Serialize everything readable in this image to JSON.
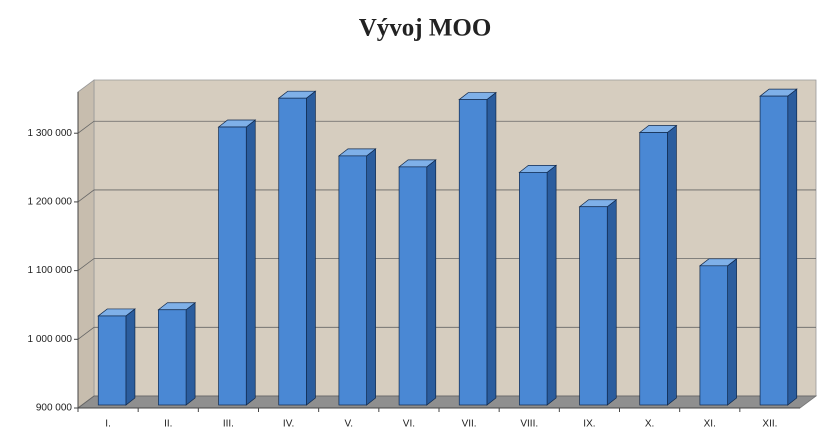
{
  "chart_data": {
    "type": "bar3d",
    "title": "Vývoj MOO",
    "categories": [
      "I.",
      "II.",
      "III.",
      "IV.",
      "V.",
      "VI.",
      "VII.",
      "VIII.",
      "IX.",
      "X.",
      "XI.",
      "XII."
    ],
    "values": [
      1034000,
      1043000,
      1309000,
      1351000,
      1267000,
      1251000,
      1349000,
      1243000,
      1193000,
      1301000,
      1107000,
      1354000
    ],
    "color": "#4a88d4",
    "ylim": [
      900000,
      1360000
    ],
    "yticks": [
      {
        "value": 900000,
        "label": "900 000"
      },
      {
        "value": 1000000,
        "label": "1 000 000"
      },
      {
        "value": 1100000,
        "label": "1 100 000"
      },
      {
        "value": 1200000,
        "label": "1 200 000"
      },
      {
        "value": 1300000,
        "label": "1 300 000"
      }
    ],
    "grid": true
  }
}
